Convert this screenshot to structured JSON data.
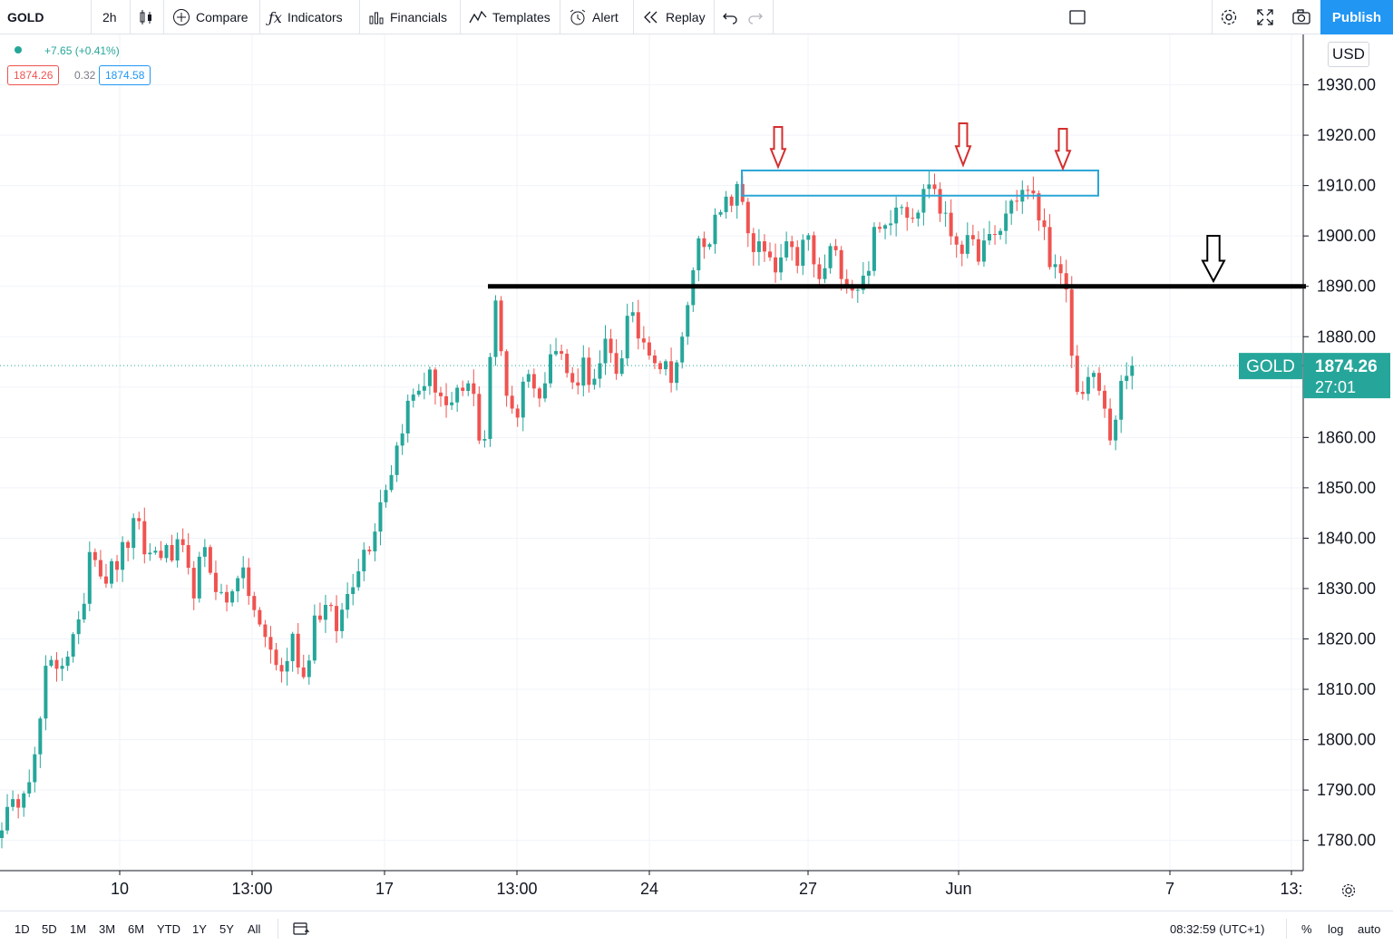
{
  "toolbar": {
    "symbol": "GOLD",
    "interval": "2h",
    "compare_label": "Compare",
    "indicators_label": "Indicators",
    "financials_label": "Financials",
    "templates_label": "Templates",
    "alert_label": "Alert",
    "replay_label": "Replay",
    "publish_label": "Publish"
  },
  "legend": {
    "change": "+7.65 (+0.41%)",
    "bid": "1874.26",
    "spread": "0.32",
    "ask": "1874.58"
  },
  "price_scale": {
    "currency": "USD",
    "current_symbol_tag": "GOLD",
    "current_price_tag": "1874.26",
    "countdown": "27:01"
  },
  "bottombar": {
    "ranges": [
      "1D",
      "5D",
      "1M",
      "3M",
      "6M",
      "YTD",
      "1Y",
      "5Y",
      "All"
    ],
    "clock": "08:32:59 (UTC+1)",
    "percent_label": "%",
    "log_label": "log",
    "auto_label": "auto"
  },
  "chart_data": {
    "type": "candlestick",
    "symbol": "GOLD",
    "currency": "USD",
    "current_price": 1874.26,
    "ylim": [
      1774,
      1940
    ],
    "y_ticks": [
      "1930.00",
      "1920.00",
      "1910.00",
      "1900.00",
      "1890.00",
      "1880.00",
      "1870.00",
      "1860.00",
      "1850.00",
      "1840.00",
      "1830.00",
      "1820.00",
      "1810.00",
      "1800.00",
      "1790.00",
      "1780.00"
    ],
    "x_ticks": [
      "10",
      "13:00",
      "17",
      "13:00",
      "24",
      "27",
      "Jun",
      "7",
      "13:"
    ],
    "grid": true,
    "path": [
      1784,
      1786,
      1792,
      1796,
      1814,
      1815,
      1818,
      1822,
      1841,
      1832,
      1834,
      1838,
      1843,
      1836,
      1838,
      1836,
      1838,
      1829,
      1837,
      1832,
      1826,
      1834,
      1830,
      1822,
      1818,
      1813,
      1820,
      1812,
      1825,
      1826,
      1822,
      1830,
      1836,
      1840,
      1849,
      1855,
      1865,
      1869,
      1872,
      1870,
      1864,
      1869,
      1870,
      1856,
      1888,
      1870,
      1864,
      1875,
      1866,
      1879,
      1876,
      1870,
      1875,
      1870,
      1878,
      1873,
      1884,
      1880,
      1878,
      1874,
      1873,
      1880,
      1898,
      1900,
      1903,
      1907,
      1909,
      1898,
      1897,
      1892,
      1897,
      1895,
      1900,
      1890,
      1897,
      1894,
      1890,
      1891,
      1900,
      1902,
      1908,
      1905,
      1906,
      1912,
      1904,
      1900,
      1898,
      1897,
      1898,
      1900,
      1906,
      1909,
      1908,
      1902,
      1893,
      1890,
      1868,
      1872,
      1870,
      1860,
      1869,
      1874.26
    ],
    "annotations": {
      "horizontal_line_price": 1890,
      "resistance_box_prices": [
        1908,
        1913
      ],
      "red_down_arrows": 3,
      "black_down_arrows": 1
    }
  }
}
